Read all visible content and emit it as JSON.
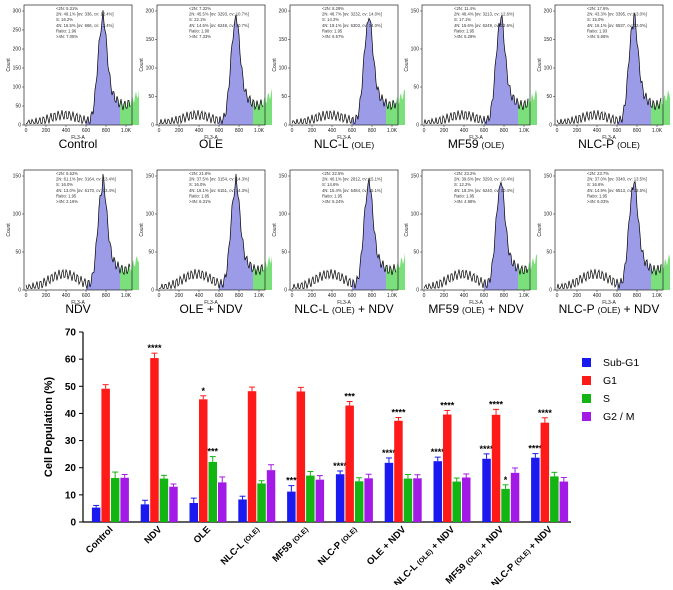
{
  "histograms": {
    "xaxis_label": "FL3-A",
    "yaxis_label": "Count",
    "x_ticks": [
      "0",
      "200",
      "400",
      "600",
      "800",
      "1.0K"
    ],
    "panels": [
      {
        "caption": "Control",
        "caption_sub": "",
        "caption_suffix": "",
        "y_ticks": [
          "0",
          "50",
          "100",
          "150",
          "200",
          "250",
          "300"
        ],
        "stats": [
          "<2N: 5.31%",
          "2N: 49.1%  [ov: 336, cv: 12.4%]",
          "S: 16.2%",
          "4N: 16.5%  [ov: 666, cv: 12.4%]",
          "Ratio: 1.96",
          ">4N: 7.05%"
        ]
      },
      {
        "caption": "OLE",
        "caption_sub": "",
        "caption_suffix": "",
        "y_ticks": [
          "0",
          "50",
          "100",
          "150",
          "200"
        ],
        "stats": [
          "<2N: 7.32%",
          "2N: 45.5%  [ov: 3293, cv: 10.7%]",
          "S: 22.1%",
          "4N: 14.5%  [ov: 6248, cv: 10.7%]",
          "Ratio: 1.90",
          ">4N: 7.33%"
        ]
      },
      {
        "caption": "NLC-L",
        "caption_sub": "(OLE)",
        "caption_suffix": "",
        "y_ticks": [
          "0",
          "50",
          "100",
          "150",
          "200"
        ],
        "stats": [
          "<2N: 8.29%",
          "2N: 48.7%  [ov: 3232, cv: 14.0%]",
          "S: 14.2%",
          "4N: 19.1%  [ov: 6303, cv: 14.0%]",
          "Ratio: 1.95",
          ">4N: 6.57%"
        ]
      },
      {
        "caption": "MF59",
        "caption_sub": "(OLE)",
        "caption_suffix": "",
        "y_ticks": [
          "0",
          "50",
          "100",
          "150"
        ],
        "stats": [
          "<2N: 11.4%",
          "2N: 48.4%  [ov: 3213, cv: 12.6%]",
          "S: 17.1%",
          "4N: 15.6%  [ov: 6249, cv: 12.6%]",
          "Ratio: 1.95",
          ">4N: 5.29%"
        ]
      },
      {
        "caption": "NLC-P",
        "caption_sub": "(OLE)",
        "caption_suffix": "",
        "y_ticks": [
          "0",
          "50",
          "100",
          "150",
          "200"
        ],
        "stats": [
          "<2N: 17.6%",
          "2N: 43.3%  [ov: 3395, cv: 13.0%]",
          "S: 15.0%",
          "4N: 16.1%  [ov: 6537, cv: 13.0%]",
          "Ratio: 1.93",
          ">4N: 5.66%"
        ]
      },
      {
        "caption": "NDV",
        "caption_sub": "",
        "caption_suffix": "",
        "y_ticks": [
          "0",
          "50",
          "100",
          "150"
        ],
        "stats": [
          "<2N: 6.52%",
          "2N: 61.1%  [ov: 3164, cv: 13.4%]",
          "S: 16.0%",
          "4N: 13.0%  [ov: 6170, cv: 13.4%]",
          "Ratio: 1.95",
          ">4N: 2.16%"
        ]
      },
      {
        "caption": "OLE + NDV",
        "caption_sub": "",
        "caption_suffix": "",
        "y_ticks": [
          "0",
          "50",
          "100",
          "150"
        ],
        "stats": [
          "<2N: 21.6%",
          "2N: 37.5%  [ov: 3154, cv: 14.3%]",
          "S: 16.0%",
          "4N: 16.1%  [ov: 6151, cv: 14.3%]",
          "Ratio: 1.95",
          ">4N: 6.31%"
        ]
      },
      {
        "caption": "NLC-L",
        "caption_sub": "(OLE)",
        "caption_suffix": " + NDV",
        "y_ticks": [
          "0",
          "50",
          "100",
          "150"
        ],
        "stats": [
          "<2N: 22.5%",
          "2N: 40.1%  [ov: 2812, cv: 15.1%]",
          "S: 14.6%",
          "4N: 15.4%  [ov: 5484, cv: 15.1%]",
          "Ratio: 1.95",
          ">4N: 5.24%"
        ]
      },
      {
        "caption": "MF59",
        "caption_sub": "(OLE)",
        "caption_suffix": " + NDV",
        "y_ticks": [
          "0",
          "50",
          "100",
          "150"
        ],
        "stats": [
          "<2N: 23.2%",
          "2N: 39.6%  [ov: 3293, cv: 10.4%]",
          "S: 12.2%",
          "4N: 18.3%  [ov: 6240, cv: 10.4%]",
          "Ratio: 1.95",
          ">4N: 4.98%"
        ]
      },
      {
        "caption": "NLC-P",
        "caption_sub": "(OLE)",
        "caption_suffix": " + NDV",
        "y_ticks": [
          "0",
          "50",
          "100",
          "150"
        ],
        "stats": [
          "<2N: 23.7%",
          "2N: 37.0%  [ov: 3340, cv: 13.5%]",
          "S: 16.6%",
          "4N: 14.9%  [ov: 6513, cv: 13.5%]",
          "Ratio: 1.95",
          ">4N: 6.03%"
        ]
      }
    ]
  },
  "chart_data": {
    "type": "bar",
    "ylabel": "Cell Population (%)",
    "ylim": [
      0,
      70
    ],
    "yticks": [
      0,
      10,
      20,
      30,
      40,
      50,
      60,
      70
    ],
    "legend_position": "right",
    "categories": [
      {
        "main": "Control",
        "sub": "",
        "suffix": ""
      },
      {
        "main": "NDV",
        "sub": "",
        "suffix": ""
      },
      {
        "main": "OLE",
        "sub": "",
        "suffix": ""
      },
      {
        "main": "NLC-L ",
        "sub": "(OLE)",
        "suffix": ""
      },
      {
        "main": "MF59 ",
        "sub": "(OLE)",
        "suffix": ""
      },
      {
        "main": "NLC-P ",
        "sub": "(OLE)",
        "suffix": ""
      },
      {
        "main": "OLE + NDV",
        "sub": "",
        "suffix": ""
      },
      {
        "main": "NLC-L ",
        "sub": "(OLE)",
        "suffix": " + NDV"
      },
      {
        "main": "MF59 ",
        "sub": "(OLE)",
        "suffix": " + NDV"
      },
      {
        "main": "NLC-P ",
        "sub": "(OLE)",
        "suffix": " + NDV"
      }
    ],
    "series": [
      {
        "name": "Sub-G1",
        "color": "#1a1af0",
        "values": [
          5.3,
          6.5,
          7.0,
          8.3,
          11.2,
          17.6,
          21.8,
          22.4,
          23.3,
          23.7
        ],
        "errors": [
          0.8,
          1.5,
          1.8,
          1.2,
          2.2,
          1.2,
          1.8,
          1.5,
          1.8,
          1.5
        ],
        "sig": [
          "",
          "",
          "",
          "",
          "***",
          "****",
          "****",
          "****",
          "****",
          "****"
        ]
      },
      {
        "name": "G1",
        "color": "#ff1a1a",
        "values": [
          49.1,
          60.4,
          45.2,
          48.2,
          48.1,
          42.9,
          37.3,
          39.6,
          39.5,
          36.6
        ],
        "errors": [
          1.5,
          1.8,
          1.3,
          1.5,
          1.5,
          1.5,
          1.2,
          1.5,
          2.0,
          1.8
        ],
        "sig": [
          "",
          "****",
          "*",
          "",
          "",
          "***",
          "****",
          "****",
          "****",
          "****"
        ]
      },
      {
        "name": "S",
        "color": "#12b512",
        "values": [
          16.2,
          16.0,
          22.1,
          14.2,
          17.1,
          15.0,
          16.0,
          14.9,
          12.2,
          16.8
        ],
        "errors": [
          2.2,
          1.2,
          2.0,
          1.0,
          1.5,
          1.3,
          1.5,
          1.3,
          1.5,
          1.5
        ],
        "sig": [
          "",
          "",
          "***",
          "",
          "",
          "",
          "",
          "",
          "*",
          ""
        ]
      },
      {
        "name": "G2 / M",
        "color": "#a31ae6",
        "values": [
          16.3,
          13.0,
          14.6,
          19.1,
          15.6,
          16.1,
          16.1,
          16.4,
          18.1,
          14.9
        ],
        "errors": [
          1.2,
          1.0,
          2.0,
          2.0,
          1.5,
          1.5,
          1.3,
          1.3,
          1.8,
          1.5
        ],
        "sig": [
          "",
          "",
          "",
          "",
          "",
          "",
          "",
          "",
          "",
          ""
        ]
      }
    ]
  }
}
